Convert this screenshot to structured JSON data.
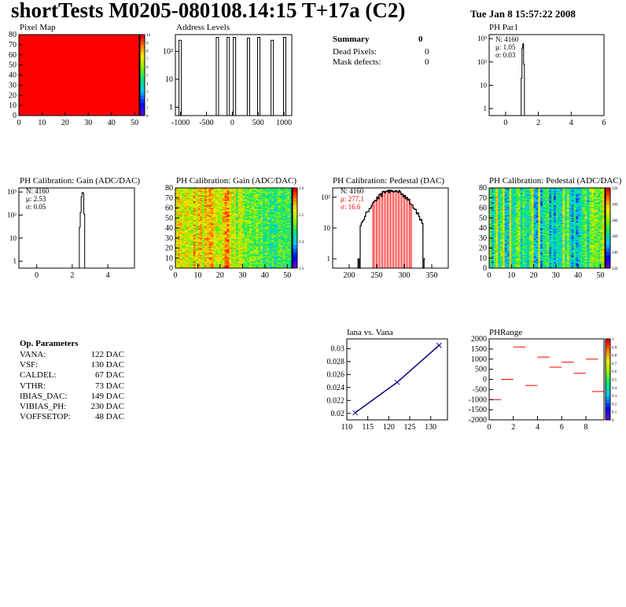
{
  "header": {
    "title": "shortTests M0205-080108.14:15 T+17a (C2)",
    "datetime": "Tue Jan  8 15:57:22 2008"
  },
  "summary": {
    "title": "Summary",
    "title_value": "0",
    "rows": [
      {
        "label": "Dead Pixels:",
        "value": "0"
      },
      {
        "label": "Mask defects:",
        "value": "0"
      }
    ]
  },
  "op_params": {
    "title": "Op. Parameters",
    "rows": [
      {
        "label": "VANA:",
        "value": "122 DAC"
      },
      {
        "label": "VSF:",
        "value": "130 DAC"
      },
      {
        "label": "CALDEL:",
        "value": "67 DAC"
      },
      {
        "label": "VTHR:",
        "value": "73 DAC"
      },
      {
        "label": "IBIAS_DAC:",
        "value": "149 DAC"
      },
      {
        "label": "VIBIAS_PH:",
        "value": "230 DAC"
      },
      {
        "label": "VOFFSETOP:",
        "value": "48 DAC"
      }
    ]
  },
  "colors": {
    "red": "#ff0000",
    "blue": "#0000cc",
    "navy": "#000080"
  },
  "chart_data": [
    {
      "id": "pixel-map",
      "type": "heatmap",
      "title": "Pixel Map",
      "xlim": [
        0,
        52
      ],
      "ylim": [
        0,
        80
      ],
      "xticks": [
        "0",
        "10",
        "20",
        "30",
        "40",
        "50"
      ],
      "yticks": [
        "0",
        "10",
        "20",
        "30",
        "40",
        "50",
        "60",
        "70",
        "80"
      ],
      "uniform_value": 10,
      "zticks": [
        "0",
        "1",
        "2",
        "3",
        "4",
        "5",
        "6",
        "7",
        "8",
        "9",
        "10"
      ]
    },
    {
      "id": "address-levels",
      "type": "bar",
      "title": "Address Levels",
      "log_y": true,
      "xlim": [
        -1100,
        1150
      ],
      "xticks": [
        "-1000",
        "-500",
        "0",
        "500",
        "1000"
      ],
      "yticks": [
        "1",
        "10",
        "10²"
      ],
      "peaks": [
        {
          "x": -1000,
          "height": 250
        },
        {
          "x": -280,
          "height": 320
        },
        {
          "x": -70,
          "height": 320
        },
        {
          "x": 50,
          "height": 320
        },
        {
          "x": 320,
          "height": 300
        },
        {
          "x": 520,
          "height": 320
        },
        {
          "x": 780,
          "height": 250
        },
        {
          "x": 1020,
          "height": 320
        }
      ]
    },
    {
      "id": "ph-par1",
      "type": "bar",
      "title": "PH Par1",
      "log_y": true,
      "xlim": [
        -1,
        6
      ],
      "xticks": [
        "0",
        "2",
        "4",
        "6"
      ],
      "yticks": [
        "1",
        "10",
        "10²",
        "10³"
      ],
      "stats": [
        "N: 4160",
        "μ: 1.05",
        "σ: 0.03"
      ],
      "bins": [
        {
          "x": 0.95,
          "count": 20
        },
        {
          "x": 1.0,
          "count": 400
        },
        {
          "x": 1.05,
          "count": 600
        },
        {
          "x": 1.1,
          "count": 80
        }
      ]
    },
    {
      "id": "gain-hist",
      "type": "bar",
      "title": "PH Calibration: Gain (ADC/DAC)",
      "log_y": true,
      "xlim": [
        -1,
        5.5
      ],
      "xticks": [
        "0",
        "2",
        "4"
      ],
      "yticks": [
        "1",
        "10",
        "10²",
        "10³"
      ],
      "stats": [
        "N: 4160",
        "μ: 2.53",
        "σ: 0.05"
      ],
      "bins": [
        {
          "x": 2.4,
          "count": 30
        },
        {
          "x": 2.45,
          "count": 130
        },
        {
          "x": 2.5,
          "count": 600
        },
        {
          "x": 2.55,
          "count": 950
        },
        {
          "x": 2.6,
          "count": 900
        },
        {
          "x": 2.65,
          "count": 110
        }
      ]
    },
    {
      "id": "gain-map",
      "type": "heatmap",
      "title": "PH Calibration: Gain (ADC/DAC)",
      "xlim": [
        0,
        52
      ],
      "ylim": [
        0,
        80
      ],
      "xticks": [
        "0",
        "10",
        "20",
        "30",
        "40",
        "50"
      ],
      "yticks": [
        "0",
        "10",
        "20",
        "30",
        "40",
        "50",
        "60",
        "70",
        "80"
      ],
      "zticks": [
        "2.3",
        "2.4",
        "2.5",
        "2.6"
      ]
    },
    {
      "id": "pedestal-hist",
      "type": "bar",
      "title": "PH Calibration: Pedestal (DAC)",
      "log_y": true,
      "xlim": [
        170,
        380
      ],
      "xticks": [
        "200",
        "250",
        "300",
        "350"
      ],
      "yticks": [
        "1",
        "10",
        "10²"
      ],
      "stats": [
        "N: 4160"
      ],
      "stats_red": [
        "μ: 277.1",
        "σ: 16.6"
      ],
      "mean": 277.1,
      "sigma": 16.6,
      "fit_range": [
        243,
        313
      ]
    },
    {
      "id": "pedestal-map",
      "type": "heatmap",
      "title": "PH Calibration: Pedestal (ADC/DAC)",
      "xlim": [
        0,
        52
      ],
      "ylim": [
        0,
        80
      ],
      "xticks": [
        "0",
        "10",
        "20",
        "30",
        "40",
        "50"
      ],
      "yticks": [
        "0",
        "10",
        "20",
        "30",
        "40",
        "50",
        "60",
        "70",
        "80"
      ],
      "zticks": [
        "220",
        "240",
        "260",
        "280",
        "300",
        "320"
      ]
    },
    {
      "id": "iana-vana",
      "type": "line",
      "title": "Iana vs. Vana",
      "xlim": [
        110,
        134
      ],
      "ylim": [
        0.019,
        0.0315
      ],
      "xticks": [
        "110",
        "115",
        "120",
        "125",
        "130"
      ],
      "yticks": [
        "0.02",
        "0.022",
        "0.024",
        "0.026",
        "0.028",
        "0.03"
      ],
      "x": [
        112,
        122,
        132
      ],
      "y": [
        0.0201,
        0.0248,
        0.0305
      ]
    },
    {
      "id": "ph-range",
      "type": "scatter",
      "title": "PHRange",
      "xlim": [
        0,
        9.5
      ],
      "ylim": [
        -2000,
        2000
      ],
      "xticks": [
        "0",
        "2",
        "4",
        "6",
        "8"
      ],
      "yticks": [
        "2000",
        "1500",
        "1000",
        "500",
        "0",
        "-500",
        "-1000",
        "-1500",
        "-2000"
      ],
      "segments": [
        {
          "x": 0,
          "y": -1000
        },
        {
          "x": 1,
          "y": 0
        },
        {
          "x": 2,
          "y": 1600
        },
        {
          "x": 3,
          "y": -300
        },
        {
          "x": 4,
          "y": 1100
        },
        {
          "x": 5,
          "y": 600
        },
        {
          "x": 6,
          "y": 850
        },
        {
          "x": 7,
          "y": 300
        },
        {
          "x": 8,
          "y": 1000
        },
        {
          "x": 8.5,
          "y": -600
        }
      ],
      "zticks": [
        "0",
        "0.1",
        "0.2",
        "0.3",
        "0.4",
        "0.5",
        "0.6",
        "0.7",
        "0.8",
        "0.9",
        "1"
      ]
    }
  ]
}
